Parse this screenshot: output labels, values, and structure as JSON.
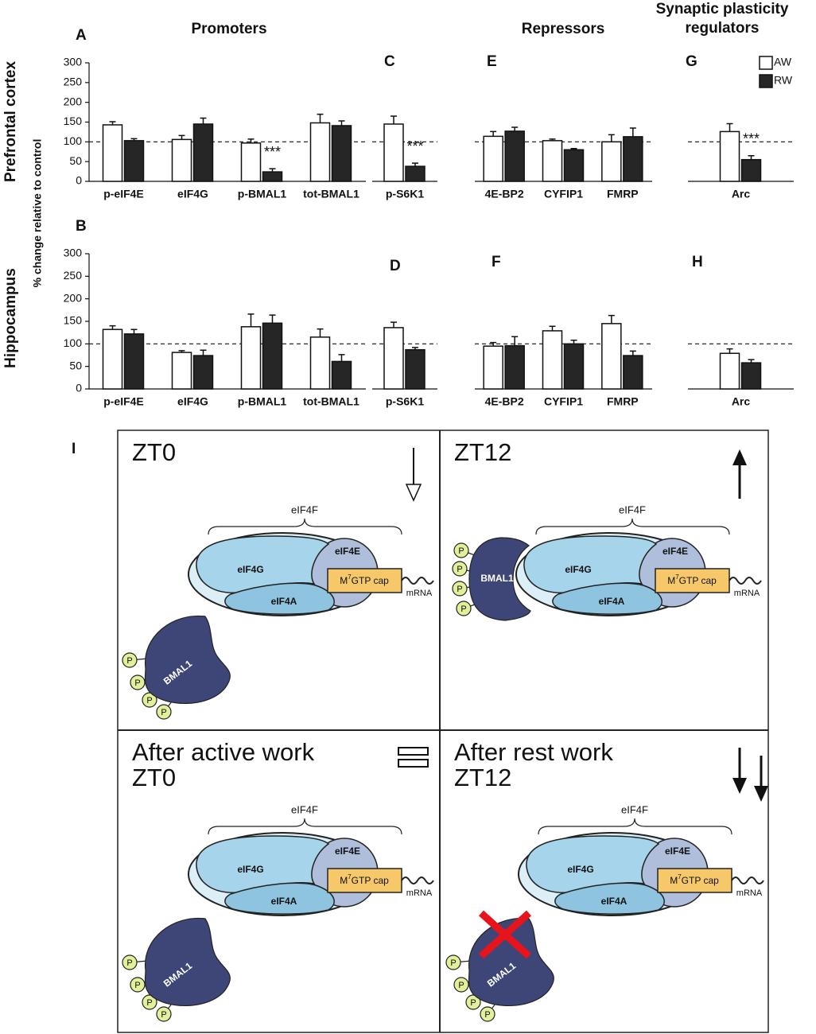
{
  "headers": {
    "promoters": "Promoters",
    "repressors": "Repressors",
    "synaptic": [
      "Synaptic plasticity",
      "regulators"
    ]
  },
  "row_labels": [
    "Prefrontal cortex",
    "Hippocampus"
  ],
  "y_axis_label": "% change relative to control",
  "chart_data": [
    {
      "type": "bar",
      "label": "A",
      "categories": [
        "p-eIF4E",
        "eIF4G",
        "p-BMAL1",
        "tot-BMAL1"
      ],
      "series": [
        {
          "name": "AW",
          "color": "#ffffff",
          "values": [
            143,
            106,
            97,
            148
          ],
          "errors": [
            8,
            10,
            10,
            22
          ]
        },
        {
          "name": "RW",
          "color": "#262626",
          "values": [
            103,
            145,
            24,
            141
          ],
          "errors": [
            5,
            15,
            8,
            12
          ],
          "significance": [
            null,
            null,
            "***",
            null
          ]
        }
      ],
      "ylim": [
        0,
        300
      ],
      "yticks": [
        0,
        50,
        100,
        150,
        200,
        250,
        300
      ],
      "reference_line": 100
    },
    {
      "type": "bar",
      "label": "B",
      "categories": [
        "p-eIF4E",
        "eIF4G",
        "p-BMAL1",
        "tot-BMAL1"
      ],
      "series": [
        {
          "name": "AW",
          "color": "#ffffff",
          "values": [
            132,
            81,
            138,
            115
          ],
          "errors": [
            8,
            4,
            28,
            18
          ]
        },
        {
          "name": "RW",
          "color": "#262626",
          "values": [
            122,
            74,
            146,
            61
          ],
          "errors": [
            10,
            12,
            18,
            15
          ]
        }
      ],
      "ylim": [
        0,
        300
      ],
      "yticks": [
        0,
        50,
        100,
        150,
        200,
        250,
        300
      ],
      "reference_line": 100
    },
    {
      "type": "bar",
      "label": "C",
      "categories": [
        "p-S6K1"
      ],
      "series": [
        {
          "name": "AW",
          "color": "#ffffff",
          "values": [
            145
          ],
          "errors": [
            20
          ]
        },
        {
          "name": "RW",
          "color": "#262626",
          "values": [
            38
          ],
          "errors": [
            8
          ],
          "significance": [
            "***"
          ]
        }
      ],
      "ylim": [
        0,
        300
      ],
      "reference_line": 100
    },
    {
      "type": "bar",
      "label": "D",
      "categories": [
        "p-S6K1"
      ],
      "series": [
        {
          "name": "AW",
          "color": "#ffffff",
          "values": [
            136
          ],
          "errors": [
            12
          ]
        },
        {
          "name": "RW",
          "color": "#262626",
          "values": [
            87
          ],
          "errors": [
            5
          ]
        }
      ],
      "ylim": [
        0,
        300
      ],
      "reference_line": 100
    },
    {
      "type": "bar",
      "label": "E",
      "categories": [
        "4E-BP2",
        "CYFIP1",
        "FMRP"
      ],
      "series": [
        {
          "name": "AW",
          "color": "#ffffff",
          "values": [
            114,
            103,
            100
          ],
          "errors": [
            12,
            4,
            18
          ]
        },
        {
          "name": "RW",
          "color": "#262626",
          "values": [
            127,
            80,
            113
          ],
          "errors": [
            10,
            3,
            22
          ]
        }
      ],
      "ylim": [
        0,
        300
      ],
      "reference_line": 100
    },
    {
      "type": "bar",
      "label": "F",
      "categories": [
        "4E-BP2",
        "CYFIP1",
        "FMRP"
      ],
      "series": [
        {
          "name": "AW",
          "color": "#ffffff",
          "values": [
            95,
            129,
            145
          ],
          "errors": [
            8,
            10,
            18
          ]
        },
        {
          "name": "RW",
          "color": "#262626",
          "values": [
            96,
            100,
            74
          ],
          "errors": [
            20,
            8,
            10
          ]
        }
      ],
      "ylim": [
        0,
        300
      ],
      "reference_line": 100
    },
    {
      "type": "bar",
      "label": "G",
      "categories": [
        "Arc"
      ],
      "series": [
        {
          "name": "AW",
          "color": "#ffffff",
          "values": [
            126
          ],
          "errors": [
            20
          ]
        },
        {
          "name": "RW",
          "color": "#262626",
          "values": [
            55
          ],
          "errors": [
            10
          ],
          "significance": [
            "***"
          ]
        }
      ],
      "ylim": [
        0,
        300
      ],
      "reference_line": 100,
      "legend": "top-right"
    },
    {
      "type": "bar",
      "label": "H",
      "categories": [
        "Arc"
      ],
      "series": [
        {
          "name": "AW",
          "color": "#ffffff",
          "values": [
            79
          ],
          "errors": [
            10
          ]
        },
        {
          "name": "RW",
          "color": "#262626",
          "values": [
            58
          ],
          "errors": [
            7
          ]
        }
      ],
      "ylim": [
        0,
        300
      ],
      "reference_line": 100
    }
  ],
  "diagram": {
    "label": "I",
    "quadrants": [
      {
        "title": [
          "ZT0"
        ]
      },
      {
        "title": [
          "ZT12"
        ]
      },
      {
        "title": [
          "After active work",
          "ZT0"
        ]
      },
      {
        "title": [
          "After rest work",
          "ZT12"
        ]
      }
    ],
    "complex": {
      "eIF4F": "eIF4F",
      "eIF4G": "eIF4G",
      "eIF4E": "eIF4E",
      "eIF4A": "eIF4A",
      "cap": [
        "M",
        "7",
        "GTP cap"
      ],
      "mRNA": "mRNA"
    },
    "bmal1": "BMAL1",
    "phosphate": "P"
  }
}
